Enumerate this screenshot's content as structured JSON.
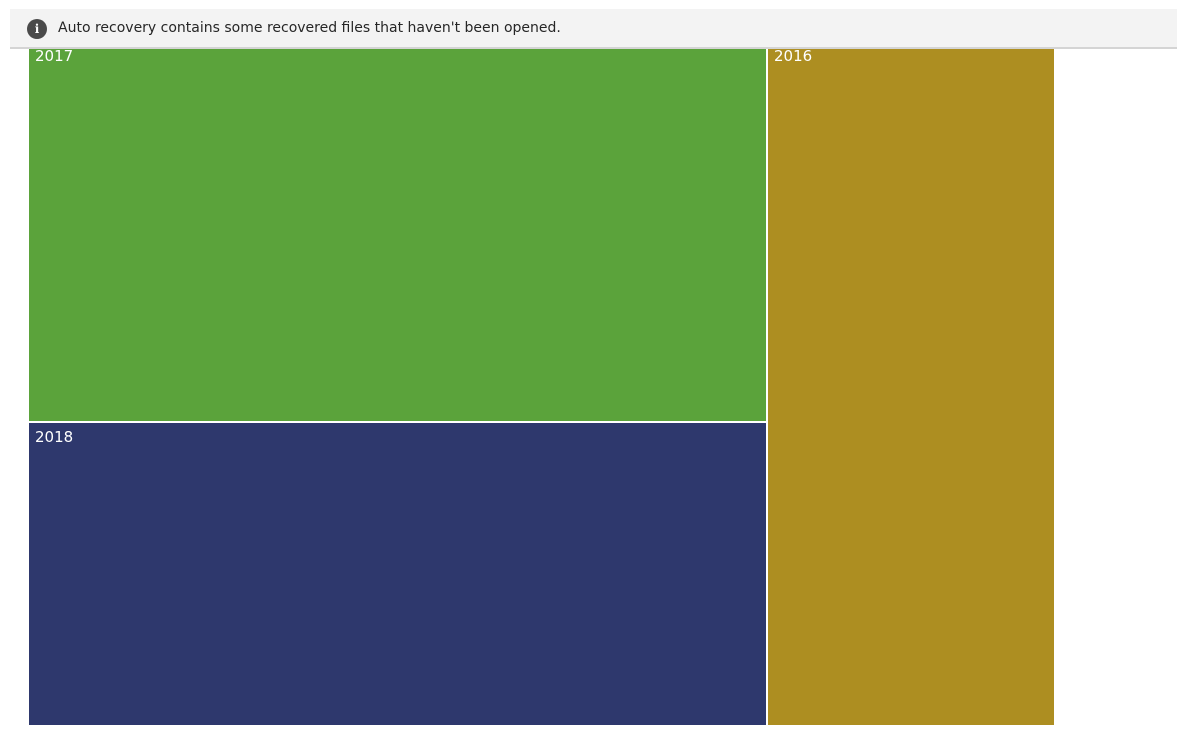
{
  "notification": {
    "icon": "info-icon",
    "icon_glyph": "i",
    "message": "Auto recovery contains some recovered files that haven't been opened."
  },
  "chart_data": {
    "type": "treemap",
    "tiles": [
      {
        "label": "2017",
        "color": "#5ba33b"
      },
      {
        "label": "2018",
        "color": "#2e386d"
      },
      {
        "label": "2016",
        "color": "#ad8e21"
      }
    ]
  }
}
